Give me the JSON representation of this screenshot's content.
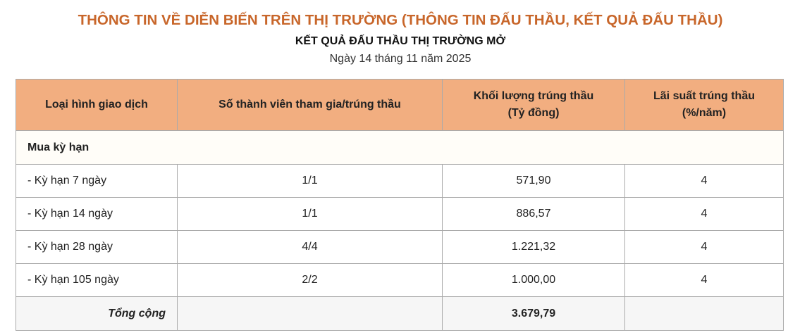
{
  "header": {
    "title": "THÔNG TIN VỀ DIỄN BIẾN TRÊN THỊ TRƯỜNG (THÔNG TIN ĐẤU THẦU, KẾT QUẢ ĐẤU THẦU)",
    "subtitle": "KẾT QUẢ ĐẤU THẦU THỊ TRƯỜNG MỞ",
    "date": "Ngày 14 tháng 11 năm 2025"
  },
  "colors": {
    "title": "#c8662a",
    "table_header_bg": "#f2ae80"
  },
  "table": {
    "columns": [
      {
        "line1": "Loại hình giao dịch",
        "line2": ""
      },
      {
        "line1": "Số thành viên tham gia/trúng thầu",
        "line2": ""
      },
      {
        "line1": "Khối lượng trúng thầu",
        "line2": "(Tỷ đồng)"
      },
      {
        "line1": "Lãi suất trúng thầu",
        "line2": "(%/năm)"
      }
    ],
    "group_label": "Mua kỳ hạn",
    "rows": [
      [
        "- Kỳ hạn 7 ngày",
        "1/1",
        "571,90",
        "4"
      ],
      [
        "- Kỳ hạn 14 ngày",
        "1/1",
        "886,57",
        "4"
      ],
      [
        "- Kỳ hạn 28 ngày",
        "4/4",
        "1.221,32",
        "4"
      ],
      [
        "- Kỳ hạn 105 ngày",
        "2/2",
        "1.000,00",
        "4"
      ]
    ],
    "total": {
      "label": "Tổng cộng",
      "volume": "3.679,79"
    }
  }
}
